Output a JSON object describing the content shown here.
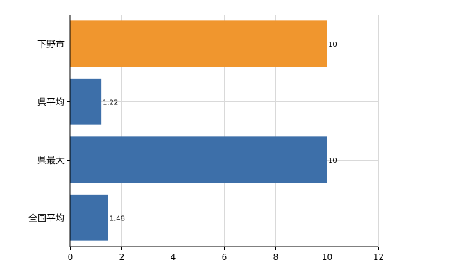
{
  "chart_data": {
    "type": "bar",
    "orientation": "horizontal",
    "categories": [
      "下野市",
      "県平均",
      "県最大",
      "全国平均"
    ],
    "values": [
      10,
      1.22,
      10,
      1.48
    ],
    "value_labels": [
      "10",
      "1.22",
      "10",
      "1.48"
    ],
    "colors": [
      "#F0962E",
      "#3D6FA9",
      "#3D6FA9",
      "#3D6FA9"
    ],
    "xlim": [
      0,
      12
    ],
    "xticks": [
      "0",
      "2",
      "4",
      "6",
      "8",
      "10",
      "12"
    ],
    "grid": true,
    "title": "",
    "xlabel": "",
    "ylabel": ""
  }
}
